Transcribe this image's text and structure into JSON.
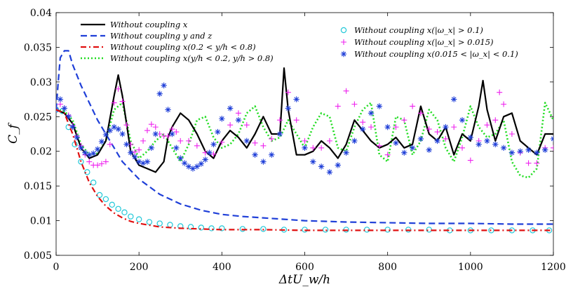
{
  "chart_data": {
    "type": "line",
    "xlabel": "ΔtU_w/h",
    "ylabel": "C_f",
    "xlim": [
      0,
      1200
    ],
    "ylim": [
      0.005,
      0.04
    ],
    "x_ticks": [
      "0",
      "200",
      "400",
      "600",
      "800",
      "1000",
      "1200"
    ],
    "y_ticks": [
      "0.005",
      "0.01",
      "0.015",
      "0.02",
      "0.025",
      "0.03",
      "0.035",
      "0.04"
    ],
    "grid": false,
    "legend_left": "upper-left",
    "legend_right": "upper-right",
    "series": [
      {
        "name": "Without coupling x",
        "style": "solid-line",
        "color": "#000000",
        "x": [
          0,
          20,
          40,
          60,
          80,
          100,
          120,
          140,
          150,
          160,
          180,
          200,
          220,
          240,
          260,
          270,
          280,
          300,
          320,
          340,
          360,
          380,
          400,
          420,
          440,
          460,
          480,
          500,
          520,
          540,
          550,
          560,
          580,
          600,
          620,
          640,
          660,
          680,
          700,
          720,
          740,
          760,
          780,
          800,
          820,
          840,
          860,
          880,
          900,
          920,
          940,
          960,
          980,
          1000,
          1020,
          1030,
          1040,
          1060,
          1080,
          1100,
          1120,
          1140,
          1160,
          1180,
          1200
        ],
        "y": [
          0.026,
          0.0255,
          0.024,
          0.0205,
          0.019,
          0.0195,
          0.0215,
          0.028,
          0.031,
          0.028,
          0.02,
          0.018,
          0.0175,
          0.017,
          0.0185,
          0.022,
          0.0235,
          0.0255,
          0.0245,
          0.0225,
          0.02,
          0.019,
          0.0215,
          0.023,
          0.022,
          0.0205,
          0.0225,
          0.025,
          0.0225,
          0.0225,
          0.032,
          0.026,
          0.0195,
          0.0195,
          0.02,
          0.0215,
          0.0205,
          0.019,
          0.021,
          0.0245,
          0.023,
          0.0215,
          0.0205,
          0.021,
          0.022,
          0.0205,
          0.021,
          0.0265,
          0.0225,
          0.0215,
          0.0235,
          0.0195,
          0.0225,
          0.0215,
          0.0265,
          0.0302,
          0.026,
          0.0215,
          0.025,
          0.0255,
          0.0215,
          0.0205,
          0.0195,
          0.0225,
          0.0225
        ]
      },
      {
        "name": "Without coupling y and z",
        "style": "dashed-line",
        "color": "#1f3fd8",
        "x": [
          0,
          5,
          10,
          20,
          30,
          40,
          60,
          80,
          100,
          130,
          160,
          200,
          250,
          300,
          350,
          400,
          450,
          500,
          550,
          600,
          700,
          800,
          900,
          1000,
          1100,
          1200
        ],
        "y": [
          0.026,
          0.03,
          0.0335,
          0.0345,
          0.0345,
          0.0325,
          0.0295,
          0.027,
          0.0245,
          0.0215,
          0.0185,
          0.016,
          0.0138,
          0.0124,
          0.0115,
          0.0109,
          0.0106,
          0.0104,
          0.0102,
          0.01,
          0.0098,
          0.0097,
          0.0096,
          0.0096,
          0.0095,
          0.0095
        ]
      },
      {
        "name": "Without coupling x(0.2 < y/h < 0.8)",
        "style": "dash-dot-line",
        "color": "#e01010",
        "x": [
          0,
          20,
          40,
          60,
          80,
          100,
          120,
          140,
          160,
          180,
          200,
          250,
          300,
          350,
          400,
          500,
          600,
          800,
          1000,
          1200
        ],
        "y": [
          0.026,
          0.0255,
          0.0225,
          0.0185,
          0.0155,
          0.0135,
          0.0121,
          0.0111,
          0.0104,
          0.0099,
          0.0096,
          0.0091,
          0.0089,
          0.0088,
          0.0087,
          0.0087,
          0.0086,
          0.0086,
          0.0086,
          0.0086
        ]
      },
      {
        "name": "Without coupling x(y/h < 0.2, y/h > 0.8)",
        "style": "dotted-line",
        "color": "#22dd22",
        "x": [
          0,
          20,
          40,
          60,
          80,
          100,
          120,
          140,
          160,
          180,
          200,
          220,
          240,
          260,
          280,
          300,
          320,
          340,
          360,
          380,
          400,
          420,
          440,
          460,
          480,
          500,
          520,
          540,
          560,
          580,
          600,
          620,
          640,
          660,
          680,
          700,
          720,
          740,
          760,
          780,
          800,
          820,
          840,
          860,
          880,
          900,
          920,
          940,
          960,
          980,
          1000,
          1020,
          1040,
          1060,
          1080,
          1100,
          1120,
          1140,
          1160,
          1180,
          1200
        ],
        "y": [
          0.026,
          0.0258,
          0.0245,
          0.021,
          0.0195,
          0.0197,
          0.0215,
          0.026,
          0.027,
          0.0215,
          0.019,
          0.02,
          0.0215,
          0.0225,
          0.0205,
          0.0185,
          0.021,
          0.0245,
          0.025,
          0.022,
          0.0205,
          0.021,
          0.0225,
          0.0255,
          0.0265,
          0.0235,
          0.0215,
          0.022,
          0.0245,
          0.0225,
          0.0205,
          0.0235,
          0.0255,
          0.025,
          0.0205,
          0.02,
          0.0235,
          0.026,
          0.027,
          0.0195,
          0.0185,
          0.025,
          0.0245,
          0.0195,
          0.0215,
          0.026,
          0.0245,
          0.0205,
          0.0185,
          0.022,
          0.0265,
          0.0235,
          0.022,
          0.0225,
          0.0245,
          0.0185,
          0.0165,
          0.0162,
          0.0175,
          0.027,
          0.0245
        ]
      },
      {
        "name": "Without coupling x(|ω_x| > 0.1)",
        "style": "circle-markers",
        "color": "#22c8d8",
        "x": [
          0,
          15,
          30,
          45,
          60,
          75,
          90,
          105,
          120,
          135,
          150,
          165,
          180,
          200,
          225,
          250,
          275,
          300,
          325,
          350,
          375,
          400,
          450,
          500,
          550,
          600,
          650,
          700,
          750,
          800,
          850,
          900,
          950,
          1000,
          1050,
          1100,
          1150,
          1190
        ],
        "y": [
          0.026,
          0.0258,
          0.0235,
          0.021,
          0.0185,
          0.017,
          0.0155,
          0.0137,
          0.0131,
          0.0123,
          0.0117,
          0.0112,
          0.0106,
          0.0102,
          0.0098,
          0.0096,
          0.0094,
          0.0092,
          0.0091,
          0.009,
          0.0089,
          0.0089,
          0.0088,
          0.0088,
          0.0087,
          0.0087,
          0.0087,
          0.0087,
          0.0087,
          0.0087,
          0.0087,
          0.0087,
          0.0086,
          0.0086,
          0.0086,
          0.0086,
          0.0086,
          0.0086
        ]
      },
      {
        "name": "Without coupling x(|ω_x| > 0.015)",
        "style": "plus-markers",
        "color": "#ee22ee",
        "x": [
          0,
          10,
          20,
          30,
          40,
          50,
          60,
          70,
          80,
          90,
          100,
          110,
          120,
          130,
          140,
          150,
          160,
          170,
          180,
          190,
          200,
          210,
          220,
          230,
          240,
          250,
          260,
          270,
          280,
          290,
          300,
          320,
          340,
          360,
          380,
          400,
          420,
          440,
          460,
          480,
          500,
          520,
          540,
          560,
          580,
          600,
          620,
          640,
          660,
          680,
          700,
          720,
          740,
          760,
          780,
          800,
          820,
          840,
          860,
          880,
          900,
          920,
          940,
          960,
          980,
          1000,
          1020,
          1040,
          1060,
          1070,
          1080,
          1100,
          1120,
          1140,
          1160,
          1180,
          1200
        ],
        "y": [
          0.026,
          0.0268,
          0.0262,
          0.0252,
          0.0237,
          0.0222,
          0.0208,
          0.0195,
          0.0185,
          0.018,
          0.018,
          0.0182,
          0.0185,
          0.021,
          0.027,
          0.029,
          0.0272,
          0.0238,
          0.021,
          0.0199,
          0.0202,
          0.0215,
          0.023,
          0.0239,
          0.0235,
          0.0225,
          0.0222,
          0.0222,
          0.0232,
          0.0228,
          0.0215,
          0.0215,
          0.0208,
          0.0198,
          0.0196,
          0.0213,
          0.0238,
          0.0255,
          0.0238,
          0.0212,
          0.0208,
          0.0218,
          0.0245,
          0.0285,
          0.0245,
          0.0215,
          0.0205,
          0.0205,
          0.0215,
          0.0265,
          0.0287,
          0.0268,
          0.0242,
          0.0235,
          0.0208,
          0.0195,
          0.0235,
          0.0245,
          0.0265,
          0.0255,
          0.0232,
          0.0228,
          0.0218,
          0.0235,
          0.0205,
          0.0187,
          0.0215,
          0.0238,
          0.0245,
          0.0285,
          0.0268,
          0.0225,
          0.0198,
          0.0183,
          0.0183,
          0.0205,
          0.0205
        ]
      },
      {
        "name": "Without coupling x(0.015 < |ω_x| < 0.1)",
        "style": "asterisk-markers",
        "color": "#1f3fd8",
        "x": [
          0,
          10,
          20,
          30,
          40,
          50,
          60,
          70,
          80,
          90,
          100,
          110,
          120,
          130,
          140,
          150,
          160,
          170,
          180,
          190,
          200,
          210,
          220,
          230,
          240,
          250,
          260,
          270,
          280,
          290,
          300,
          310,
          320,
          330,
          340,
          350,
          360,
          370,
          380,
          390,
          400,
          420,
          440,
          460,
          480,
          500,
          520,
          540,
          560,
          580,
          600,
          620,
          640,
          660,
          680,
          700,
          720,
          740,
          760,
          780,
          800,
          820,
          840,
          860,
          880,
          900,
          920,
          940,
          960,
          980,
          1000,
          1020,
          1040,
          1060,
          1080,
          1100,
          1120,
          1140,
          1160,
          1180,
          1200
        ],
        "y": [
          0.026,
          0.0275,
          0.0262,
          0.025,
          0.0235,
          0.022,
          0.0205,
          0.0198,
          0.0195,
          0.0197,
          0.0203,
          0.0214,
          0.0224,
          0.023,
          0.0235,
          0.0232,
          0.0225,
          0.021,
          0.0198,
          0.0192,
          0.0185,
          0.0183,
          0.0185,
          0.0205,
          0.0225,
          0.0283,
          0.0295,
          0.026,
          0.0225,
          0.0205,
          0.019,
          0.0183,
          0.0178,
          0.0175,
          0.0178,
          0.0182,
          0.0188,
          0.0198,
          0.021,
          0.0228,
          0.0247,
          0.0262,
          0.0245,
          0.0215,
          0.0195,
          0.0185,
          0.0195,
          0.0225,
          0.0262,
          0.0275,
          0.0205,
          0.0185,
          0.0178,
          0.017,
          0.018,
          0.0198,
          0.0215,
          0.0232,
          0.0255,
          0.0265,
          0.0235,
          0.0212,
          0.0198,
          0.0205,
          0.0218,
          0.0202,
          0.0215,
          0.0235,
          0.0275,
          0.0245,
          0.022,
          0.021,
          0.0215,
          0.021,
          0.0205,
          0.0198,
          0.02,
          0.0202,
          0.0198,
          0.0202,
          0.0218
        ]
      }
    ]
  }
}
